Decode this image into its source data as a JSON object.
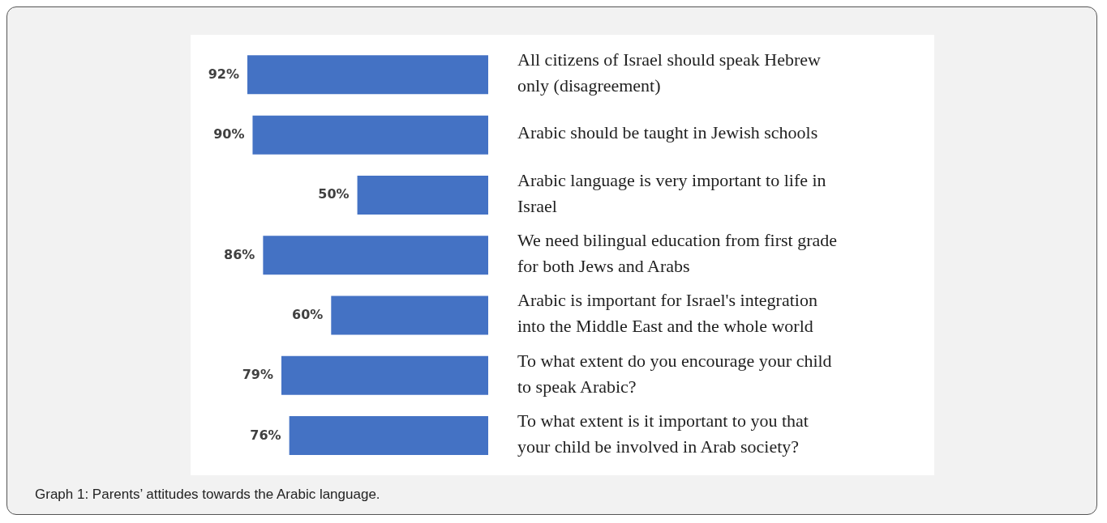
{
  "chart_data": {
    "type": "bar",
    "orientation": "horizontal",
    "categories": [
      "All citizens of Israel should speak Hebrew only (disagreement)",
      "Arabic should be taught in Jewish schools",
      "Arabic language is very important to life in Israel",
      "We need bilingual education from first grade for both Jews and Arabs",
      "Arabic is important for Israel's integration into the Middle East and the whole world",
      "To what extent do you encourage your child to speak Arabic?",
      "To what extent is it important to you that your child be involved in Arab society?"
    ],
    "values": [
      92,
      90,
      50,
      86,
      60,
      79,
      76
    ],
    "value_labels": [
      "92%",
      "90%",
      "50%",
      "86%",
      "60%",
      "79%",
      "76%"
    ],
    "color": "#4472c4",
    "annotations": [
      "Graph 1: Parents’ attitudes towards the Arabic language."
    ]
  }
}
